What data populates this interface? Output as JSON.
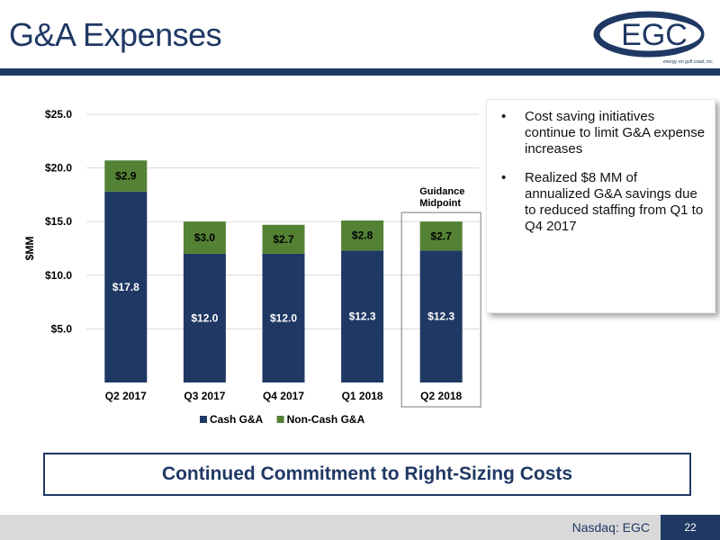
{
  "page": {
    "title": "G&A Expenses",
    "logo_text": "EGC",
    "logo_tagline": "energy xxi gulf coast, inc.",
    "banner": "Continued Commitment to Right-Sizing Costs",
    "footer_text": "Nasdaq: EGC",
    "page_number": "22"
  },
  "callout": {
    "bullets": [
      "Cost saving initiatives continue to limit G&A expense increases",
      "Realized $8 MM of annualized G&A savings due to reduced staffing from Q1 to Q4 2017"
    ]
  },
  "colors": {
    "navy": "#1F3864",
    "cash": "#1F3864",
    "noncash": "#548235",
    "grid": "#d9d9d9"
  },
  "chart_data": {
    "type": "bar",
    "stacked": true,
    "categories": [
      "Q2 2017",
      "Q3 2017",
      "Q4 2017",
      "Q1 2018",
      "Q2 2018"
    ],
    "series": [
      {
        "name": "Cash G&A",
        "values": [
          17.8,
          12.0,
          12.0,
          12.3,
          12.3
        ],
        "labels": [
          "$17.8",
          "$12.0",
          "$12.0",
          "$12.3",
          "$12.3"
        ],
        "color": "#1F3864"
      },
      {
        "name": "Non-Cash G&A",
        "values": [
          2.9,
          3.0,
          2.7,
          2.8,
          2.7
        ],
        "labels": [
          "$2.9",
          "$3.0",
          "$2.7",
          "$2.8",
          "$2.7"
        ],
        "color": "#548235"
      }
    ],
    "ylabel": "$MM",
    "ylim": [
      0,
      25
    ],
    "yticks": [
      5,
      10,
      15,
      20,
      25
    ],
    "ytick_labels": [
      "$5.0",
      "$10.0",
      "$15.0",
      "$20.0",
      "$25.0"
    ],
    "grid": true,
    "legend": "bottom",
    "highlight": {
      "category": "Q2 2018",
      "label_lines": [
        "Guidance",
        "Midpoint"
      ]
    }
  }
}
